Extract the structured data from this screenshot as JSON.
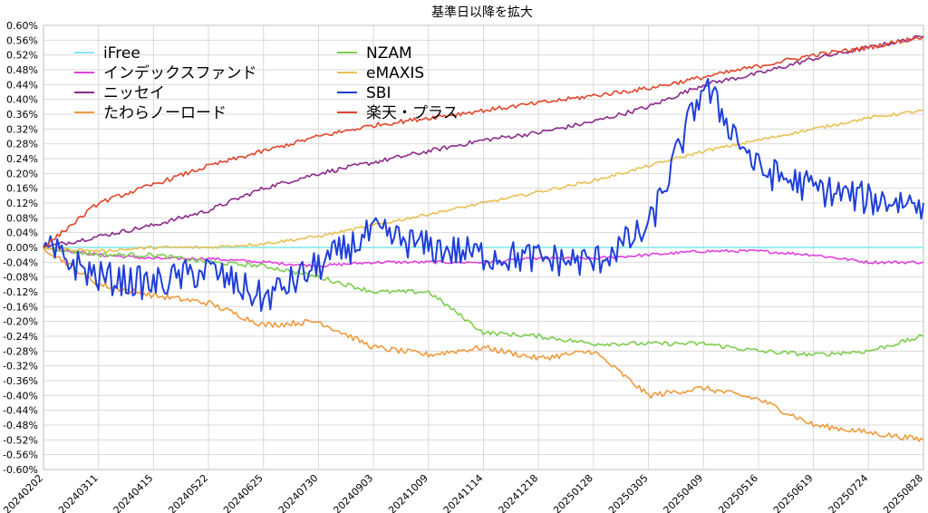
{
  "chart_data": {
    "type": "line",
    "title": "基準日以降を拡大",
    "ylim": [
      -0.6,
      0.6
    ],
    "y_step": 0.04,
    "y_unit": "%",
    "grid": true,
    "legend_position": "top-left",
    "x_tick_labels": [
      "20240202",
      "20240311",
      "20240415",
      "20240522",
      "20240625",
      "20240730",
      "20240903",
      "20241009",
      "20241114",
      "20241218",
      "20250128",
      "20250305",
      "20250409",
      "20250516",
      "20250619",
      "20250724",
      "20250828"
    ],
    "series": [
      {
        "name": "iFree",
        "color": "#7fe5f0",
        "values": [
          0.0,
          0.0,
          0.0,
          0.0,
          0.0,
          0.0,
          0.0,
          0.0,
          0.0,
          0.0,
          0.0,
          0.0,
          0.0,
          0.0,
          0.0,
          0.0,
          0.0
        ]
      },
      {
        "name": "インデックスファンド",
        "color": "#e040e0",
        "values": [
          0.0,
          -0.02,
          -0.03,
          -0.03,
          -0.04,
          -0.05,
          -0.04,
          -0.04,
          -0.04,
          -0.03,
          -0.03,
          -0.02,
          -0.01,
          -0.01,
          -0.02,
          -0.04,
          -0.04
        ]
      },
      {
        "name": "ニッセイ",
        "color": "#8b2a8b",
        "values": [
          0.0,
          0.03,
          0.06,
          0.1,
          0.16,
          0.2,
          0.23,
          0.26,
          0.29,
          0.31,
          0.34,
          0.38,
          0.44,
          0.47,
          0.51,
          0.54,
          0.57
        ]
      },
      {
        "name": "たわらノーロード",
        "color": "#ef9a3c",
        "values": [
          0.0,
          -0.1,
          -0.13,
          -0.15,
          -0.21,
          -0.2,
          -0.27,
          -0.29,
          -0.27,
          -0.3,
          -0.28,
          -0.4,
          -0.38,
          -0.41,
          -0.48,
          -0.5,
          -0.52
        ]
      },
      {
        "name": "NZAM",
        "color": "#7dcd4e",
        "values": [
          0.0,
          -0.02,
          -0.02,
          -0.04,
          -0.05,
          -0.08,
          -0.12,
          -0.12,
          -0.23,
          -0.24,
          -0.26,
          -0.26,
          -0.26,
          -0.28,
          -0.29,
          -0.28,
          -0.24
        ]
      },
      {
        "name": "eMAXIS",
        "color": "#e8c052",
        "values": [
          0.0,
          -0.01,
          0.0,
          0.0,
          0.01,
          0.03,
          0.06,
          0.09,
          0.12,
          0.15,
          0.18,
          0.22,
          0.26,
          0.29,
          0.32,
          0.35,
          0.37
        ]
      },
      {
        "name": "SBI",
        "color": "#1f3fd8",
        "values": [
          0.0,
          -0.08,
          -0.1,
          -0.06,
          -0.14,
          -0.05,
          0.04,
          0.0,
          -0.02,
          -0.03,
          -0.04,
          0.05,
          0.44,
          0.21,
          0.16,
          0.13,
          0.12
        ]
      },
      {
        "name": "楽天・プラス",
        "color": "#e2452b",
        "values": [
          0.0,
          0.12,
          0.17,
          0.22,
          0.26,
          0.3,
          0.33,
          0.35,
          0.37,
          0.39,
          0.41,
          0.43,
          0.46,
          0.49,
          0.52,
          0.54,
          0.57
        ]
      }
    ]
  }
}
